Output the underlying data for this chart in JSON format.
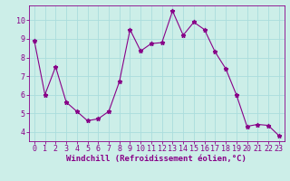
{
  "x": [
    0,
    1,
    2,
    3,
    4,
    5,
    6,
    7,
    8,
    9,
    10,
    11,
    12,
    13,
    14,
    15,
    16,
    17,
    18,
    19,
    20,
    21,
    22,
    23
  ],
  "y": [
    8.9,
    6.0,
    7.5,
    5.6,
    5.1,
    4.6,
    4.7,
    5.1,
    6.7,
    9.5,
    8.35,
    8.75,
    8.8,
    10.5,
    9.2,
    9.9,
    9.5,
    8.3,
    7.4,
    6.0,
    4.3,
    4.4,
    4.35,
    3.8
  ],
  "line_color": "#880088",
  "marker": "*",
  "marker_size": 3.5,
  "bg_color": "#cceee8",
  "grid_color": "#aadddd",
  "xlabel": "Windchill (Refroidissement éolien,°C)",
  "xlim": [
    -0.5,
    23.5
  ],
  "ylim": [
    3.5,
    10.8
  ],
  "yticks": [
    4,
    5,
    6,
    7,
    8,
    9,
    10
  ],
  "xticks": [
    0,
    1,
    2,
    3,
    4,
    5,
    6,
    7,
    8,
    9,
    10,
    11,
    12,
    13,
    14,
    15,
    16,
    17,
    18,
    19,
    20,
    21,
    22,
    23
  ],
  "xlabel_fontsize": 6.5,
  "tick_fontsize": 6.0,
  "text_color": "#880088"
}
